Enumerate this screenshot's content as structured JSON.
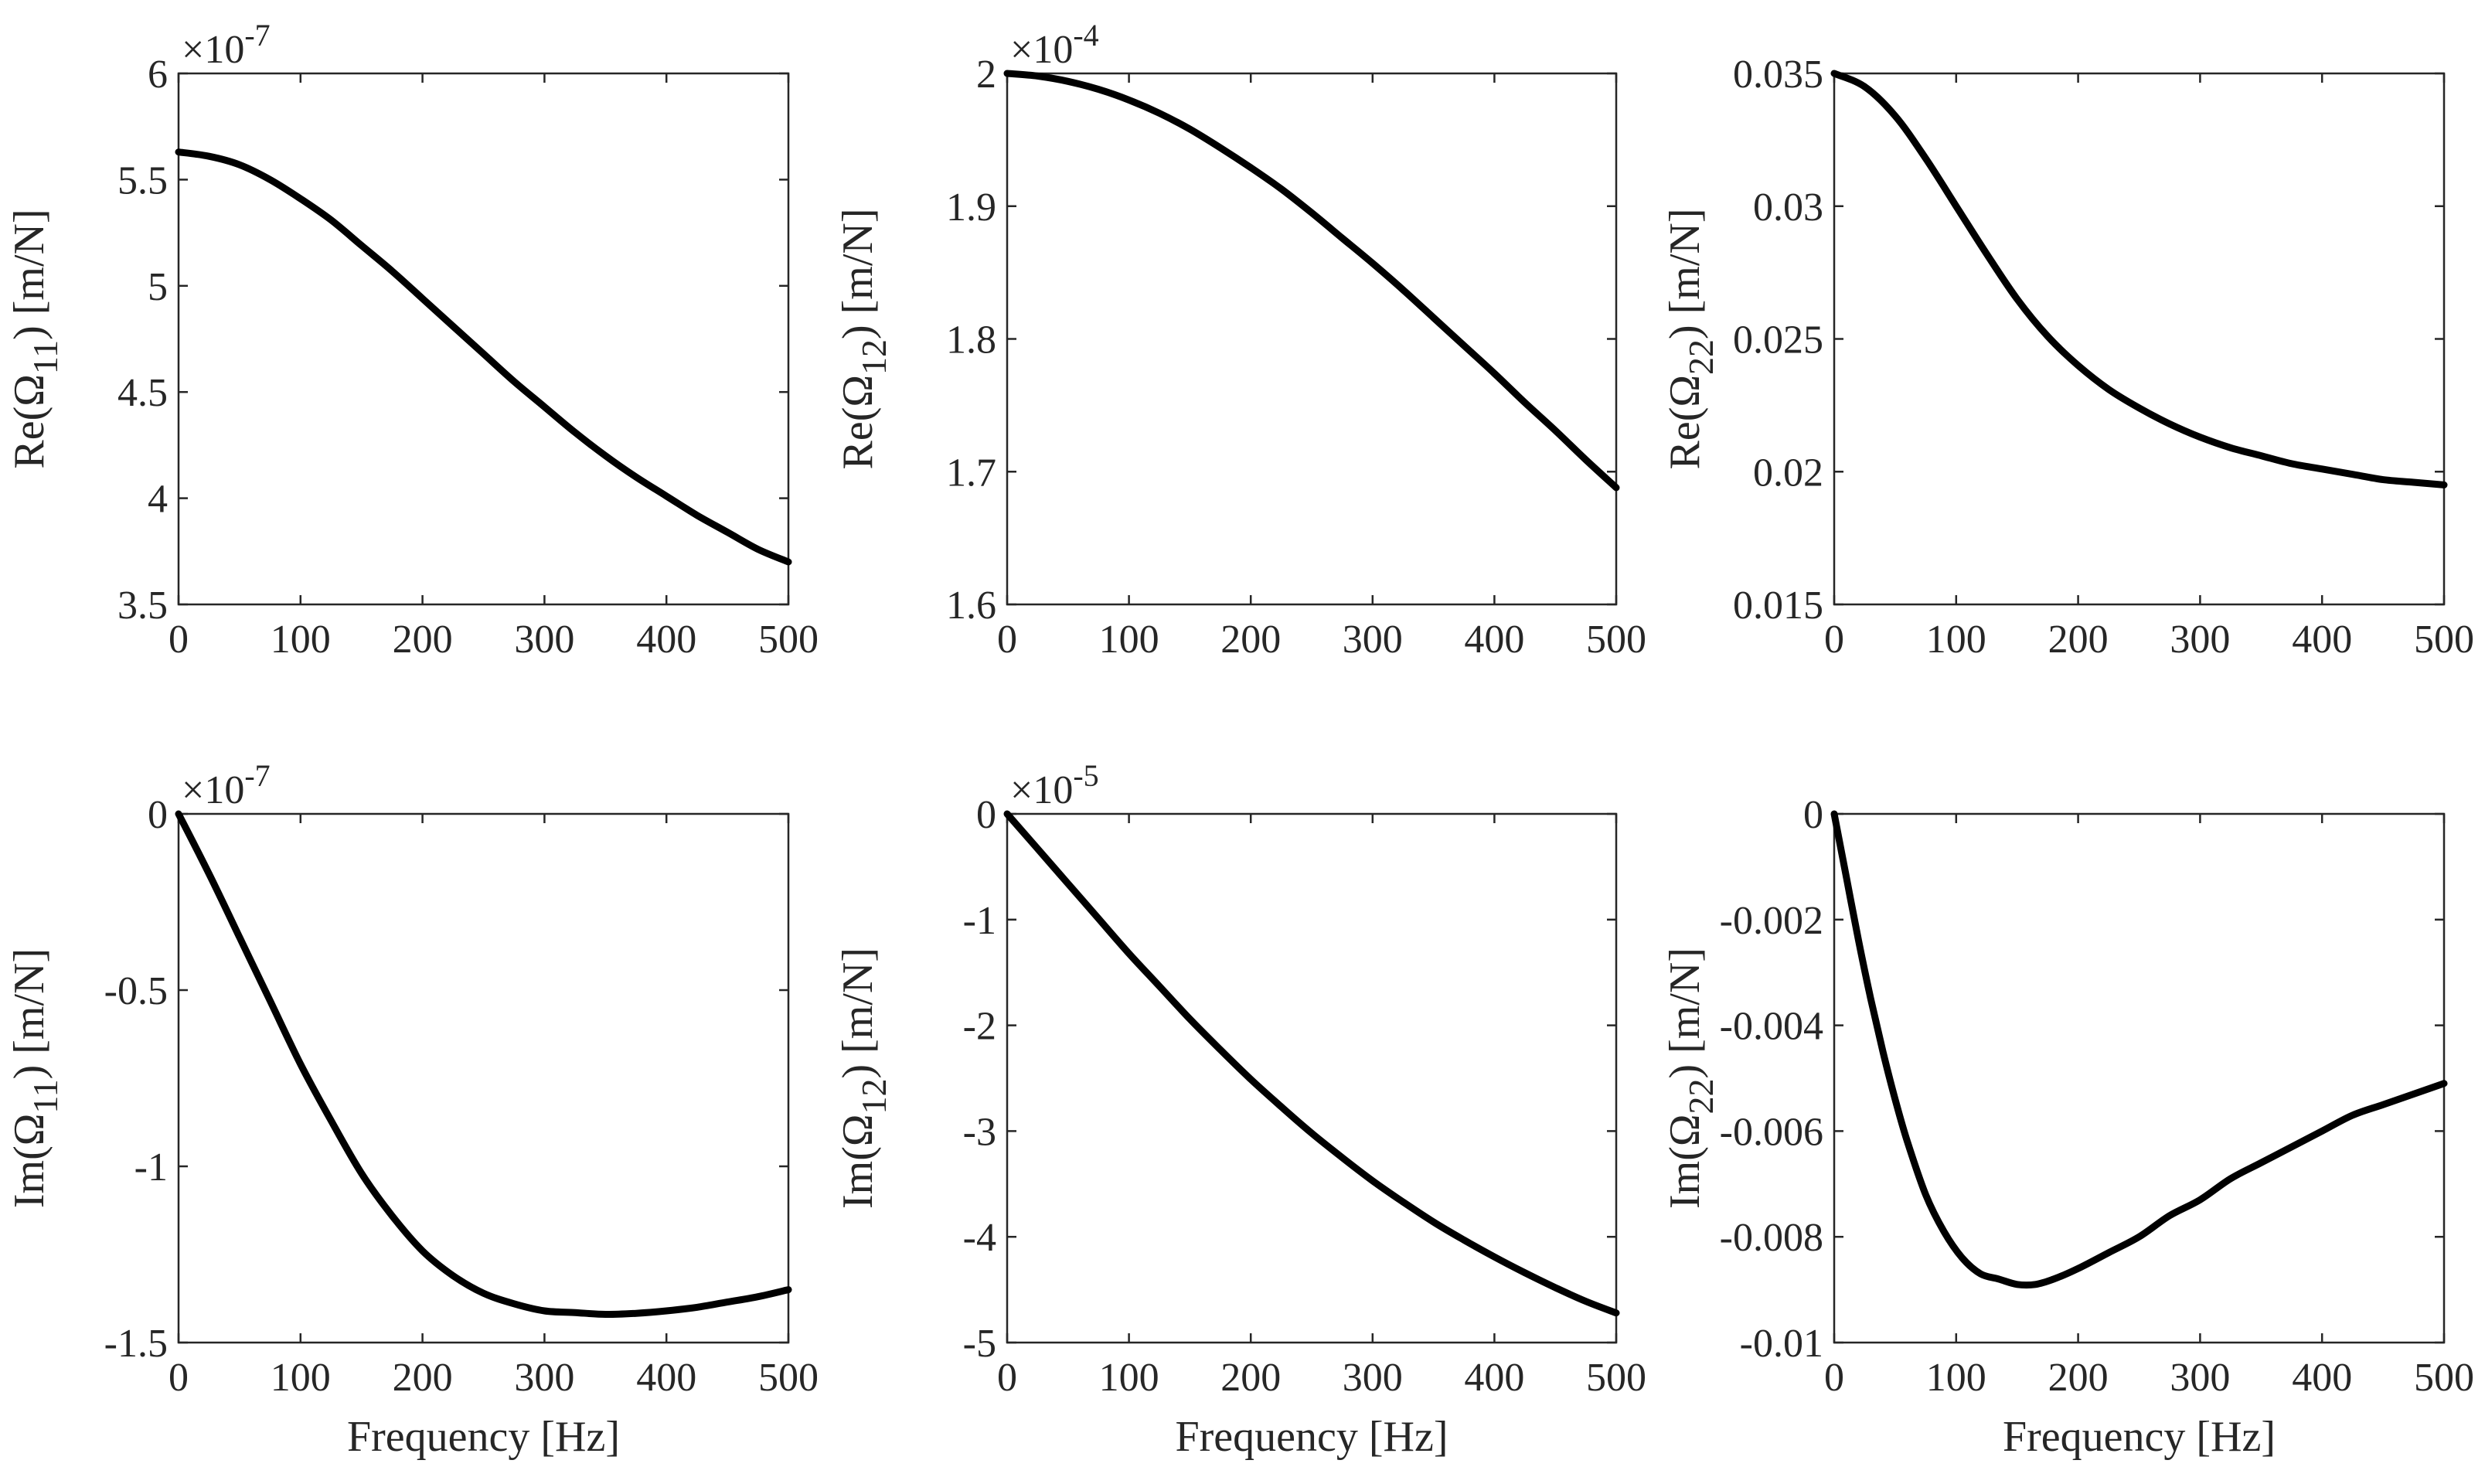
{
  "figure": {
    "line_color": "#000000",
    "axis_color": "#262626",
    "background": "#ffffff"
  },
  "chart_data": [
    {
      "type": "line",
      "id": "re11",
      "ylabel": "Re(Ω11) [m/N]",
      "ylabel_main": "Re(Ω",
      "ylabel_sub": "11",
      "ylabel_tail": ") [m/N]",
      "xlabel": "",
      "multiplier_base": "×10",
      "multiplier_exp": "-7",
      "xlim": [
        0,
        500
      ],
      "ylim": [
        3.5,
        6
      ],
      "xticks": [
        0,
        100,
        200,
        300,
        400,
        500
      ],
      "xtick_labels": [
        "0",
        "100",
        "200",
        "300",
        "400",
        "500"
      ],
      "yticks": [
        3.5,
        4,
        4.5,
        5,
        5.5,
        6
      ],
      "ytick_labels": [
        "3.5",
        "4",
        "4.5",
        "5",
        "5.5",
        "6"
      ],
      "series": [
        {
          "name": "Re(Ω11)",
          "x": [
            0,
            25,
            50,
            75,
            100,
            125,
            150,
            175,
            200,
            225,
            250,
            275,
            300,
            325,
            350,
            375,
            400,
            425,
            450,
            475,
            500
          ],
          "y": [
            5.63,
            5.61,
            5.57,
            5.5,
            5.41,
            5.31,
            5.19,
            5.07,
            4.94,
            4.81,
            4.68,
            4.55,
            4.43,
            4.31,
            4.2,
            4.1,
            4.01,
            3.92,
            3.84,
            3.76,
            3.7
          ]
        }
      ]
    },
    {
      "type": "line",
      "id": "re12",
      "ylabel": "Re(Ω12) [m/N]",
      "ylabel_main": "Re(Ω",
      "ylabel_sub": "12",
      "ylabel_tail": ") [m/N]",
      "xlabel": "",
      "multiplier_base": "×10",
      "multiplier_exp": "-4",
      "xlim": [
        0,
        500
      ],
      "ylim": [
        1.6,
        2.0
      ],
      "xticks": [
        0,
        100,
        200,
        300,
        400,
        500
      ],
      "xtick_labels": [
        "0",
        "100",
        "200",
        "300",
        "400",
        "500"
      ],
      "yticks": [
        1.6,
        1.7,
        1.8,
        1.9,
        2.0
      ],
      "ytick_labels": [
        "1.6",
        "1.7",
        "1.8",
        "1.9",
        "2"
      ],
      "series": [
        {
          "name": "Re(Ω12)",
          "x": [
            0,
            25,
            50,
            75,
            100,
            125,
            150,
            175,
            200,
            225,
            250,
            275,
            300,
            325,
            350,
            375,
            400,
            425,
            450,
            475,
            500
          ],
          "y": [
            2.0,
            1.998,
            1.994,
            1.988,
            1.98,
            1.97,
            1.958,
            1.944,
            1.929,
            1.913,
            1.895,
            1.876,
            1.857,
            1.837,
            1.816,
            1.795,
            1.774,
            1.752,
            1.731,
            1.709,
            1.688
          ]
        }
      ]
    },
    {
      "type": "line",
      "id": "re22",
      "ylabel": "Re(Ω22) [m/N]",
      "ylabel_main": "Re(Ω",
      "ylabel_sub": "22",
      "ylabel_tail": ") [m/N]",
      "xlabel": "",
      "multiplier_base": "",
      "multiplier_exp": "",
      "xlim": [
        0,
        500
      ],
      "ylim": [
        0.015,
        0.035
      ],
      "xticks": [
        0,
        100,
        200,
        300,
        400,
        500
      ],
      "xtick_labels": [
        "0",
        "100",
        "200",
        "300",
        "400",
        "500"
      ],
      "yticks": [
        0.015,
        0.02,
        0.025,
        0.03,
        0.035
      ],
      "ytick_labels": [
        "0.015",
        "0.02",
        "0.025",
        "0.03",
        "0.035"
      ],
      "series": [
        {
          "name": "Re(Ω22)",
          "x": [
            0,
            25,
            50,
            75,
            100,
            125,
            150,
            175,
            200,
            225,
            250,
            275,
            300,
            325,
            350,
            375,
            400,
            425,
            450,
            475,
            500
          ],
          "y": [
            0.035,
            0.0345,
            0.0334,
            0.0318,
            0.03,
            0.0282,
            0.0265,
            0.0251,
            0.024,
            0.0231,
            0.0224,
            0.0218,
            0.0213,
            0.0209,
            0.0206,
            0.0203,
            0.0201,
            0.0199,
            0.0197,
            0.0196,
            0.0195
          ]
        }
      ]
    },
    {
      "type": "line",
      "id": "im11",
      "ylabel": "Im(Ω11) [m/N]",
      "ylabel_main": "Im(Ω",
      "ylabel_sub": "11",
      "ylabel_tail": ") [m/N]",
      "xlabel": "Frequency [Hz]",
      "multiplier_base": "×10",
      "multiplier_exp": "-7",
      "xlim": [
        0,
        500
      ],
      "ylim": [
        -1.5,
        0
      ],
      "xticks": [
        0,
        100,
        200,
        300,
        400,
        500
      ],
      "xtick_labels": [
        "0",
        "100",
        "200",
        "300",
        "400",
        "500"
      ],
      "yticks": [
        -1.5,
        -1,
        -0.5,
        0
      ],
      "ytick_labels": [
        "-1.5",
        "-1",
        "-0.5",
        "0"
      ],
      "series": [
        {
          "name": "Im(Ω11)",
          "x": [
            0,
            25,
            50,
            75,
            100,
            125,
            150,
            175,
            200,
            225,
            250,
            275,
            300,
            325,
            350,
            375,
            400,
            425,
            450,
            475,
            500
          ],
          "y": [
            0,
            -0.17,
            -0.35,
            -0.53,
            -0.71,
            -0.87,
            -1.02,
            -1.14,
            -1.24,
            -1.31,
            -1.36,
            -1.39,
            -1.41,
            -1.415,
            -1.42,
            -1.417,
            -1.41,
            -1.4,
            -1.385,
            -1.37,
            -1.35
          ]
        }
      ]
    },
    {
      "type": "line",
      "id": "im12",
      "ylabel": "Im(Ω12) [m/N]",
      "ylabel_main": "Im(Ω",
      "ylabel_sub": "12",
      "ylabel_tail": ") [m/N]",
      "xlabel": "Frequency [Hz]",
      "multiplier_base": "×10",
      "multiplier_exp": "-5",
      "xlim": [
        0,
        500
      ],
      "ylim": [
        -5,
        0
      ],
      "xticks": [
        0,
        100,
        200,
        300,
        400,
        500
      ],
      "xtick_labels": [
        "0",
        "100",
        "200",
        "300",
        "400",
        "500"
      ],
      "yticks": [
        -5,
        -4,
        -3,
        -2,
        -1,
        0
      ],
      "ytick_labels": [
        "-5",
        "-4",
        "-3",
        "-2",
        "-1",
        "0"
      ],
      "series": [
        {
          "name": "Im(Ω12)",
          "x": [
            0,
            25,
            50,
            75,
            100,
            125,
            150,
            175,
            200,
            225,
            250,
            275,
            300,
            325,
            350,
            375,
            400,
            425,
            450,
            475,
            500
          ],
          "y": [
            0,
            -0.33,
            -0.66,
            -0.99,
            -1.32,
            -1.63,
            -1.94,
            -2.23,
            -2.51,
            -2.77,
            -3.02,
            -3.25,
            -3.47,
            -3.67,
            -3.86,
            -4.03,
            -4.19,
            -4.34,
            -4.48,
            -4.61,
            -4.72
          ]
        }
      ]
    },
    {
      "type": "line",
      "id": "im22",
      "ylabel": "Im(Ω22) [m/N]",
      "ylabel_main": "Im(Ω",
      "ylabel_sub": "22",
      "ylabel_tail": ") [m/N]",
      "xlabel": "Frequency [Hz]",
      "multiplier_base": "",
      "multiplier_exp": "",
      "xlim": [
        0,
        500
      ],
      "ylim": [
        -0.01,
        0
      ],
      "xticks": [
        0,
        100,
        200,
        300,
        400,
        500
      ],
      "xtick_labels": [
        "0",
        "100",
        "200",
        "300",
        "400",
        "500"
      ],
      "yticks": [
        -0.01,
        -0.008,
        -0.006,
        -0.004,
        -0.002,
        0
      ],
      "ytick_labels": [
        "-0.01",
        "-0.008",
        "-0.006",
        "-0.004",
        "-0.002",
        "0"
      ],
      "series": [
        {
          "name": "Im(Ω22)",
          "x": [
            0,
            10,
            20,
            30,
            40,
            50,
            60,
            75,
            90,
            105,
            120,
            135,
            150,
            165,
            180,
            200,
            225,
            250,
            275,
            300,
            325,
            350,
            375,
            400,
            425,
            450,
            475,
            500
          ],
          "y": [
            0,
            -0.0012,
            -0.0024,
            -0.0035,
            -0.0045,
            -0.0054,
            -0.0062,
            -0.0072,
            -0.0079,
            -0.0084,
            -0.0087,
            -0.0088,
            -0.0089,
            -0.0089,
            -0.0088,
            -0.0086,
            -0.0083,
            -0.008,
            -0.0076,
            -0.0073,
            -0.0069,
            -0.0066,
            -0.0063,
            -0.006,
            -0.0057,
            -0.0055,
            -0.0053,
            -0.0051
          ]
        }
      ]
    }
  ]
}
